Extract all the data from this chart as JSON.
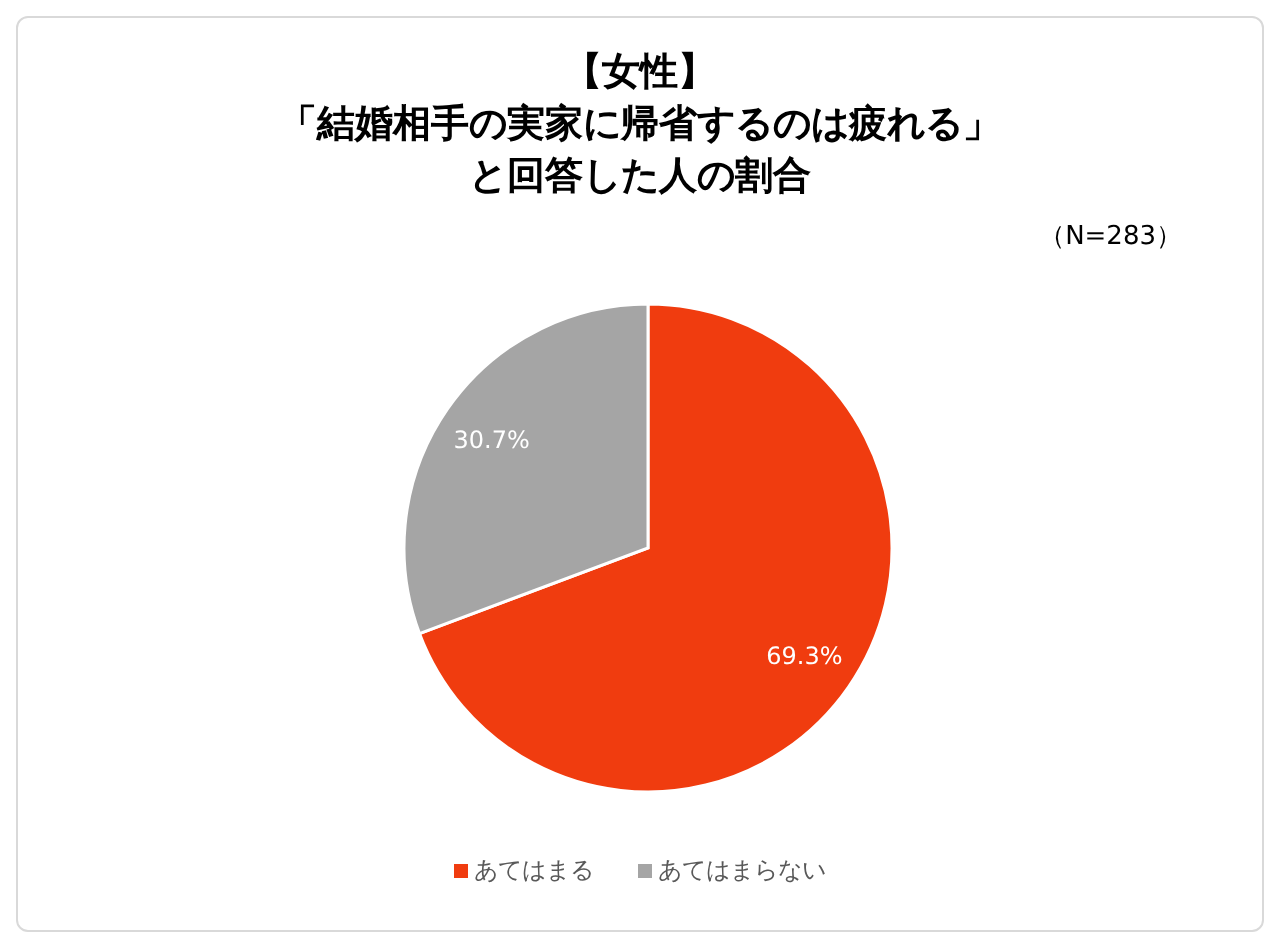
{
  "chart_data": {
    "type": "pie",
    "title": "【女性】「結婚相手の実家に帰省するのは疲れる」と回答した人の割合",
    "annotations": [
      "（N=283）"
    ],
    "categories": [
      "あてはまる",
      "あてはまらない"
    ],
    "values": [
      69.3,
      30.7
    ],
    "colors": [
      "#f03c0f",
      "#a5a5a5"
    ],
    "value_labels": [
      "69.3%",
      "30.7%"
    ],
    "legend": "bottom"
  }
}
